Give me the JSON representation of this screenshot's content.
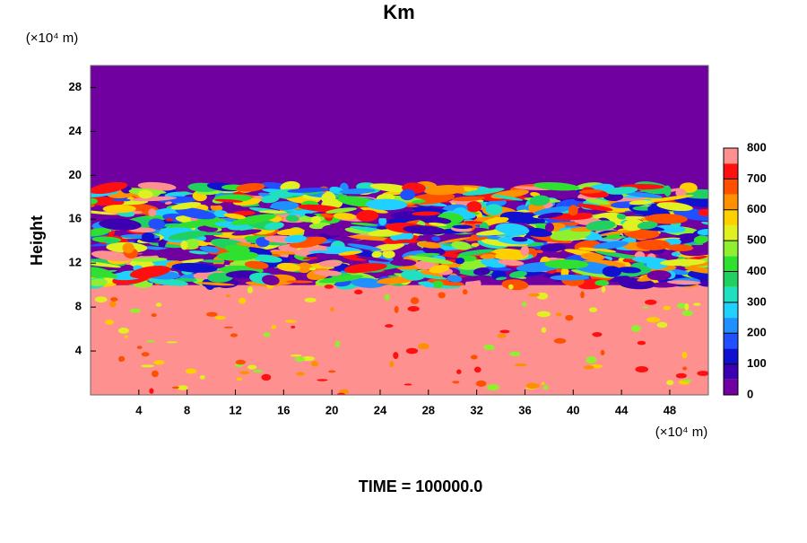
{
  "chart_data": {
    "type": "contour",
    "title": "Km",
    "y_label": "Height",
    "y_unit": "(×10⁴ m)",
    "x_unit": "(×10⁴ m)",
    "footer": "TIME = 100000.0",
    "xlim": [
      0,
      51.2
    ],
    "xticks": [
      4,
      8,
      12,
      16,
      20,
      24,
      28,
      32,
      36,
      40,
      44,
      48
    ],
    "ylim": [
      0,
      30
    ],
    "yticks": [
      4,
      8,
      12,
      16,
      20,
      24,
      28
    ],
    "colorbar": {
      "lim": [
        0,
        800
      ],
      "ticks": [
        0,
        100,
        200,
        300,
        400,
        500,
        600,
        700,
        800
      ],
      "colors": [
        "#7000a0",
        "#3c00b0",
        "#1010d0",
        "#2050ff",
        "#2090ff",
        "#20d0ff",
        "#20e0c0",
        "#20d060",
        "#30e030",
        "#90f030",
        "#e0f020",
        "#ffd000",
        "#ff9000",
        "#ff5000",
        "#ff1010",
        "#ff9090"
      ]
    }
  }
}
